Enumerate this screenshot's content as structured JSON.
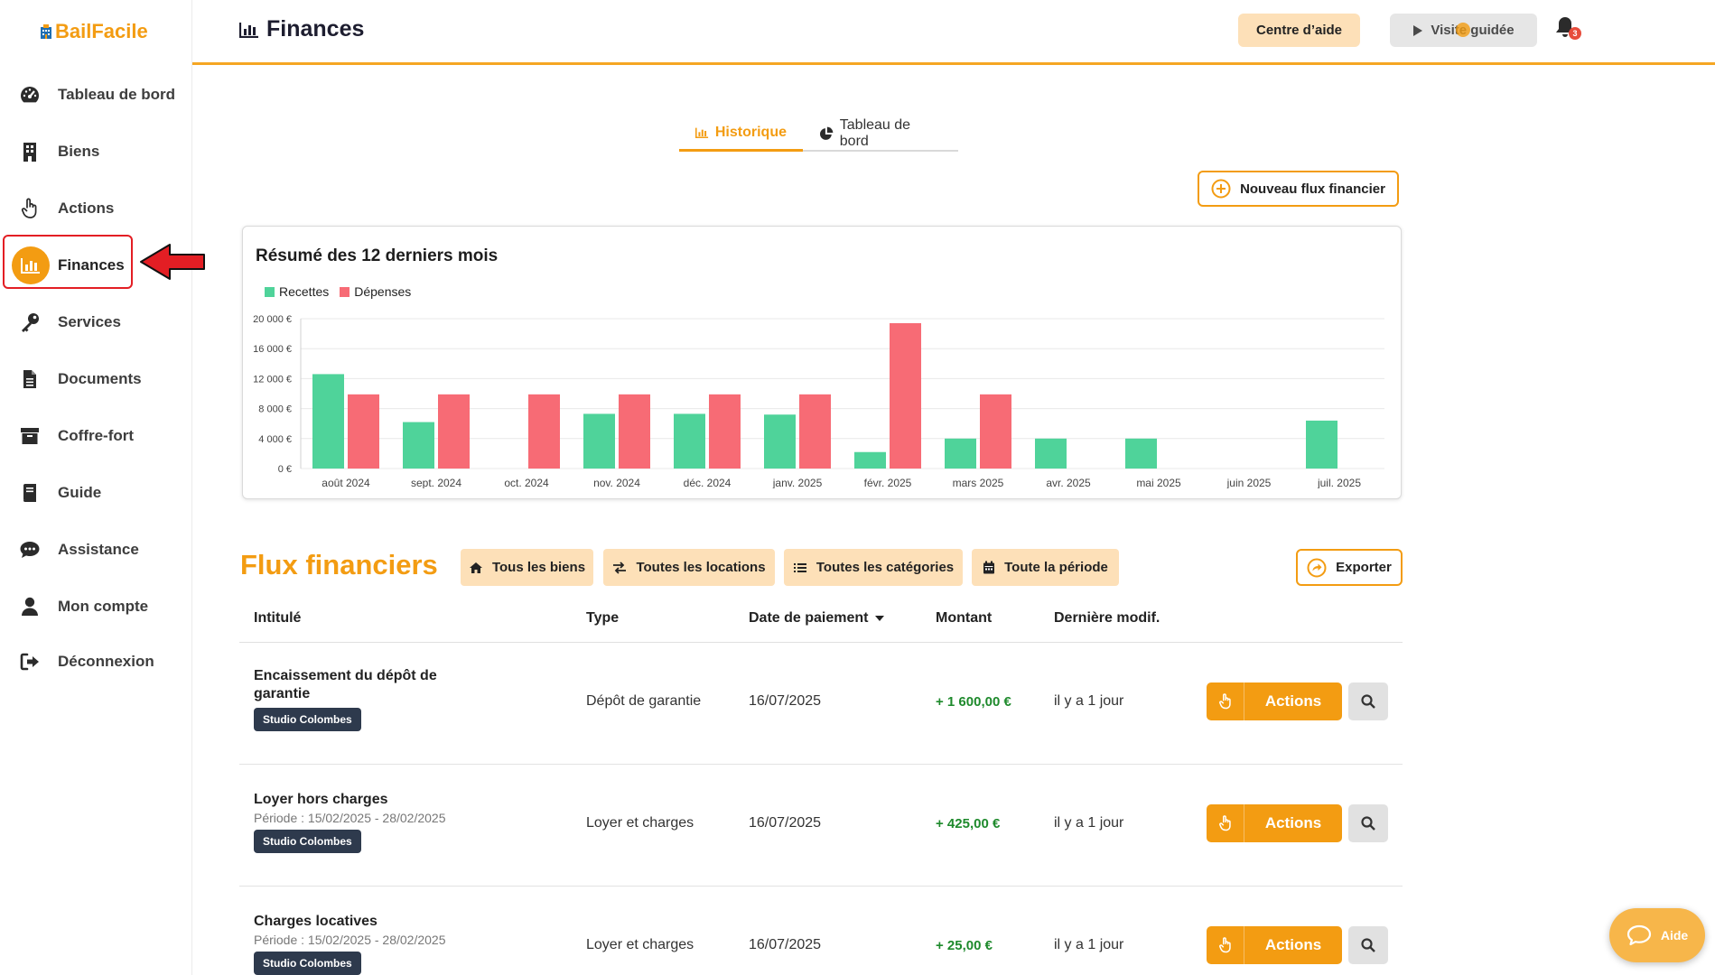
{
  "app": {
    "logo_text": "BailFacile",
    "brand_color": "#f39c12"
  },
  "sidebar": {
    "items": [
      {
        "label": "Tableau de bord",
        "icon": "tachometer-icon"
      },
      {
        "label": "Biens",
        "icon": "building-icon"
      },
      {
        "label": "Actions",
        "icon": "pointer-hand-icon"
      },
      {
        "label": "Finances",
        "icon": "bar-chart-icon",
        "active": true
      },
      {
        "label": "Services",
        "icon": "key-icon"
      },
      {
        "label": "Documents",
        "icon": "document-icon"
      },
      {
        "label": "Coffre-fort",
        "icon": "archive-box-icon"
      },
      {
        "label": "Guide",
        "icon": "book-icon"
      },
      {
        "label": "Assistance",
        "icon": "chat-bubble-icon"
      },
      {
        "label": "Mon compte",
        "icon": "user-icon"
      },
      {
        "label": "Déconnexion",
        "icon": "sign-out-icon"
      }
    ]
  },
  "header": {
    "title": "Finances",
    "help_center": "Centre d’aide",
    "guided_tour": "Visite guidée",
    "notification_count": "3"
  },
  "tabs": [
    {
      "label": "Historique",
      "active": true
    },
    {
      "label": "Tableau de bord",
      "active": false
    }
  ],
  "new_flow_button": "Nouveau flux financier",
  "chart_data": {
    "type": "bar",
    "title": "Résumé des 12 derniers mois",
    "categories": [
      "août 2024",
      "sept. 2024",
      "oct. 2024",
      "nov. 2024",
      "déc. 2024",
      "janv. 2025",
      "févr. 2025",
      "mars 2025",
      "avr. 2025",
      "mai 2025",
      "juin 2025",
      "juil. 2025"
    ],
    "series": [
      {
        "name": "Recettes",
        "color": "#4fd39a",
        "values": [
          12600,
          6200,
          0,
          7300,
          7300,
          7200,
          2200,
          4000,
          4000,
          4000,
          0,
          6400
        ]
      },
      {
        "name": "Dépenses",
        "color": "#f76b75",
        "values": [
          9900,
          9900,
          9900,
          9900,
          9900,
          9900,
          19400,
          9900,
          0,
          0,
          0,
          0
        ]
      }
    ],
    "y_ticks": [
      "0 €",
      "4 000 €",
      "8 000 €",
      "12 000 €",
      "16 000 €",
      "20 000 €"
    ],
    "ylim": [
      0,
      20000
    ],
    "legend_position": "top-left",
    "grid": true
  },
  "flux": {
    "title": "Flux financiers",
    "filters": [
      {
        "label": "Tous les biens",
        "icon": "home-icon"
      },
      {
        "label": "Toutes les locations",
        "icon": "exchange-icon"
      },
      {
        "label": "Toutes les catégories",
        "icon": "list-icon"
      },
      {
        "label": "Toute la période",
        "icon": "calendar-icon"
      }
    ],
    "export_label": "Exporter",
    "columns": [
      "Intitulé",
      "Type",
      "Date de paiement",
      "Montant",
      "Dernière modif."
    ],
    "rows": [
      {
        "title": "Encaissement du dépôt de garantie",
        "period": "",
        "tag": "Studio Colombes",
        "type": "Dépôt de garantie",
        "date": "16/07/2025",
        "amount": "+ 1 600,00 €",
        "modified": "il y a 1 jour",
        "actions_label": "Actions"
      },
      {
        "title": "Loyer hors charges",
        "period": "Période : 15/02/2025 - 28/02/2025",
        "tag": "Studio Colombes",
        "type": "Loyer et charges",
        "date": "16/07/2025",
        "amount": "+ 425,00 €",
        "modified": "il y a 1 jour",
        "actions_label": "Actions"
      },
      {
        "title": "Charges locatives",
        "period": "Période : 15/02/2025 - 28/02/2025",
        "tag": "Studio Colombes",
        "type": "Loyer et charges",
        "date": "16/07/2025",
        "amount": "+ 25,00 €",
        "modified": "il y a 1 jour",
        "actions_label": "Actions"
      }
    ]
  },
  "help_fab": "Aide"
}
